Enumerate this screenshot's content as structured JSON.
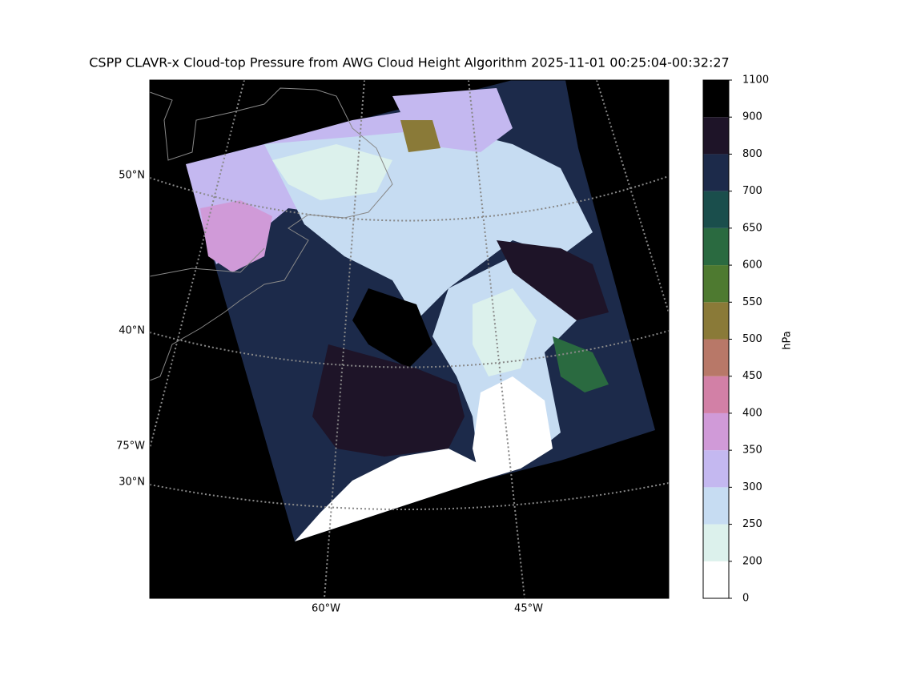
{
  "title": "CSPP CLAVR-x Cloud-top Pressure from AWG Cloud Height Algorithm 2025-11-01 00:25:04-00:32:27",
  "lat_labels": [
    "50°N",
    "40°N",
    "30°N"
  ],
  "lon_labels": [
    "75°W",
    "60°W",
    "45°W"
  ],
  "colorbar": {
    "label": "hPa",
    "levels": [
      0,
      200,
      250,
      300,
      350,
      400,
      450,
      500,
      550,
      600,
      650,
      700,
      800,
      900,
      1100
    ],
    "colors": [
      "#ffffff",
      "#dcf1ec",
      "#c6dcf2",
      "#c4b8f0",
      "#d09ad8",
      "#d280a6",
      "#b87868",
      "#8a7a38",
      "#4e7a30",
      "#2a6a40",
      "#1a4e4c",
      "#1c2a4a",
      "#1e1428",
      "#000000"
    ]
  }
}
